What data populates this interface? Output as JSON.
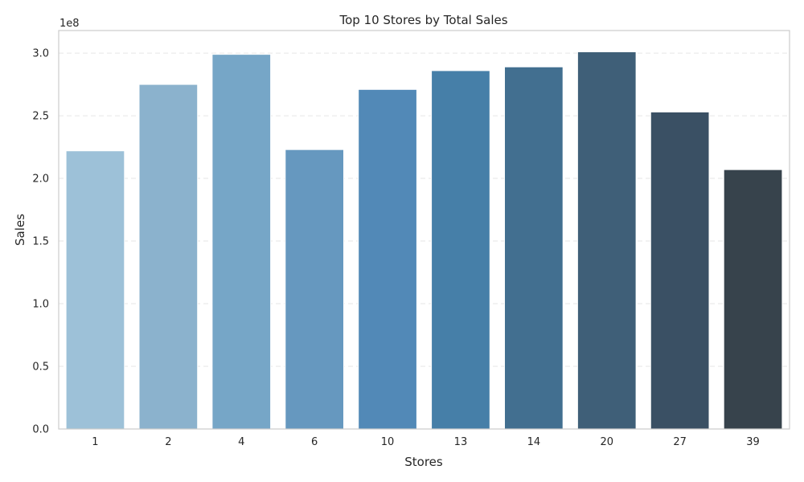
{
  "chart_data": {
    "type": "bar",
    "title": "Top 10 Stores by Total Sales",
    "xlabel": "Stores",
    "ylabel": "Sales",
    "y_offset_label": "1e8",
    "categories": [
      "1",
      "2",
      "4",
      "6",
      "10",
      "13",
      "14",
      "20",
      "27",
      "39"
    ],
    "values": [
      2.22,
      2.75,
      2.99,
      2.23,
      2.71,
      2.86,
      2.89,
      3.01,
      2.53,
      2.07
    ],
    "ylim": [
      0,
      3.18
    ],
    "yticks": [
      0.0,
      0.5,
      1.0,
      1.5,
      2.0,
      2.5,
      3.0
    ],
    "ytick_labels": [
      "0.0",
      "0.5",
      "1.0",
      "1.5",
      "2.0",
      "2.5",
      "3.0"
    ],
    "grid": true,
    "colors": [
      "#9dc1d8",
      "#8bb2cd",
      "#76a6c7",
      "#6698bf",
      "#5289b7",
      "#467fa8",
      "#426f90",
      "#3f5f78",
      "#3a5064",
      "#37434c"
    ]
  }
}
